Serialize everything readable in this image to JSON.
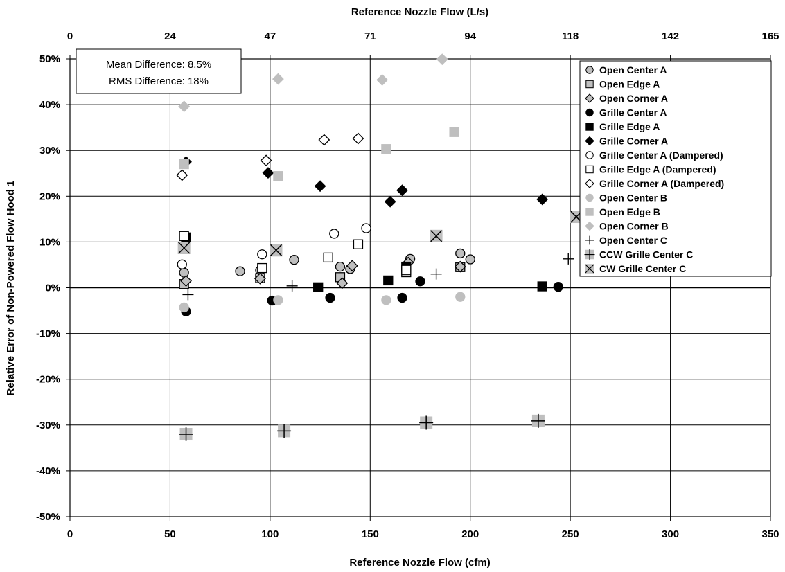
{
  "chart_data": {
    "type": "scatter",
    "xlabel": "Reference Nozzle Flow (cfm)",
    "x2label": "Reference Nozzle Flow (L/s)",
    "ylabel": "Relative Error of Non-Powered Flow Hood 1",
    "xlim": [
      0,
      350
    ],
    "ylim": [
      -50,
      50
    ],
    "x_ticks": [
      "0",
      "50",
      "100",
      "150",
      "200",
      "250",
      "300",
      "350"
    ],
    "x2_ticks": [
      "0",
      "24",
      "47",
      "71",
      "94",
      "118",
      "142",
      "165"
    ],
    "y_ticks": [
      "50%",
      "40%",
      "30%",
      "20%",
      "10%",
      "0%",
      "-10%",
      "-20%",
      "-30%",
      "-40%",
      "-50%"
    ],
    "grid": true,
    "legend_position": "top-right",
    "annotation": [
      "Mean Difference: 8.5%",
      "RMS Difference: 18%"
    ],
    "series": [
      {
        "name": "Open Center A",
        "marker": "circle",
        "fill": "#bfbfbf",
        "stroke": "#000000",
        "points": [
          [
            57,
            3.3
          ],
          [
            85,
            3.6
          ],
          [
            95,
            3.8
          ],
          [
            112,
            6.1
          ],
          [
            135,
            4.6
          ],
          [
            140,
            4.1
          ],
          [
            170,
            6.3
          ],
          [
            195,
            7.5
          ],
          [
            200,
            6.2
          ]
        ]
      },
      {
        "name": "Open Edge A",
        "marker": "square",
        "fill": "#bfbfbf",
        "stroke": "#000000",
        "points": [
          [
            57,
            0.8
          ],
          [
            95,
            2.1
          ],
          [
            135,
            2.3
          ],
          [
            168,
            3.4
          ],
          [
            195,
            4.5
          ]
        ]
      },
      {
        "name": "Open Corner A",
        "marker": "diamond",
        "fill": "#bfbfbf",
        "stroke": "#000000",
        "points": [
          [
            58,
            1.5
          ],
          [
            95,
            2.0
          ],
          [
            136,
            1.0
          ],
          [
            141,
            4.8
          ],
          [
            169,
            5.5
          ],
          [
            195,
            4.6
          ]
        ]
      },
      {
        "name": "Grille Center A",
        "marker": "circle",
        "fill": "#000000",
        "stroke": "#000000",
        "points": [
          [
            58,
            -5.2
          ],
          [
            101,
            -2.8
          ],
          [
            130,
            -2.2
          ],
          [
            166,
            -2.2
          ],
          [
            175,
            1.4
          ],
          [
            244,
            0.2
          ]
        ]
      },
      {
        "name": "Grille Edge A",
        "marker": "square",
        "fill": "#000000",
        "stroke": "#000000",
        "points": [
          [
            58,
            11.0
          ],
          [
            124,
            0.1
          ],
          [
            159,
            1.6
          ],
          [
            168,
            4.6
          ],
          [
            236,
            0.3
          ]
        ]
      },
      {
        "name": "Grille Corner A",
        "marker": "diamond",
        "fill": "#000000",
        "stroke": "#000000",
        "points": [
          [
            58,
            27.5
          ],
          [
            99,
            25.1
          ],
          [
            125,
            22.2
          ],
          [
            160,
            18.8
          ],
          [
            166,
            21.3
          ],
          [
            236,
            19.3
          ]
        ]
      },
      {
        "name": "Grille Center A (Dampered)",
        "marker": "circle",
        "fill": "#ffffff",
        "stroke": "#000000",
        "points": [
          [
            56,
            5.1
          ],
          [
            96,
            7.3
          ],
          [
            132,
            11.8
          ],
          [
            148,
            13.0
          ]
        ]
      },
      {
        "name": "Grille Edge A (Dampered)",
        "marker": "square",
        "fill": "#ffffff",
        "stroke": "#000000",
        "points": [
          [
            57,
            11.3
          ],
          [
            96,
            4.3
          ],
          [
            129,
            6.6
          ],
          [
            144,
            9.5
          ],
          [
            168,
            3.9
          ]
        ]
      },
      {
        "name": "Grille Corner A (Dampered)",
        "marker": "diamond",
        "fill": "#ffffff",
        "stroke": "#000000",
        "points": [
          [
            56,
            24.6
          ],
          [
            98,
            27.8
          ],
          [
            127,
            32.3
          ],
          [
            144,
            32.6
          ]
        ]
      },
      {
        "name": "Open Center B",
        "marker": "circle",
        "fill": "#bfbfbf",
        "stroke": "#bfbfbf",
        "points": [
          [
            57,
            -4.3
          ],
          [
            104,
            -2.7
          ],
          [
            158,
            -2.7
          ],
          [
            195,
            -2.0
          ]
        ]
      },
      {
        "name": "Open Edge B",
        "marker": "square",
        "fill": "#bfbfbf",
        "stroke": "#bfbfbf",
        "points": [
          [
            57,
            27.0
          ],
          [
            104,
            24.4
          ],
          [
            158,
            30.3
          ],
          [
            192,
            34.0
          ]
        ]
      },
      {
        "name": "Open Corner B",
        "marker": "diamond",
        "fill": "#bfbfbf",
        "stroke": "#bfbfbf",
        "points": [
          [
            57,
            39.6
          ],
          [
            104,
            45.6
          ],
          [
            156,
            45.4
          ],
          [
            186,
            49.9
          ]
        ]
      },
      {
        "name": "Open Center C",
        "marker": "plus",
        "fill": "none",
        "stroke": "#000000",
        "points": [
          [
            59,
            -1.5
          ],
          [
            111,
            0.4
          ],
          [
            183,
            3.0
          ],
          [
            249,
            6.3
          ]
        ]
      },
      {
        "name": "CCW Grille Center C",
        "marker": "square-plus",
        "fill": "#bfbfbf",
        "stroke": "#000000",
        "points": [
          [
            58,
            -32.0
          ],
          [
            107,
            -31.3
          ],
          [
            178,
            -29.5
          ],
          [
            234,
            -29.1
          ]
        ]
      },
      {
        "name": "CW Grille Center C",
        "marker": "square-x",
        "fill": "#bfbfbf",
        "stroke": "#000000",
        "points": [
          [
            57,
            8.7
          ],
          [
            103,
            8.2
          ],
          [
            183,
            11.3
          ],
          [
            253,
            15.5
          ]
        ]
      }
    ]
  }
}
